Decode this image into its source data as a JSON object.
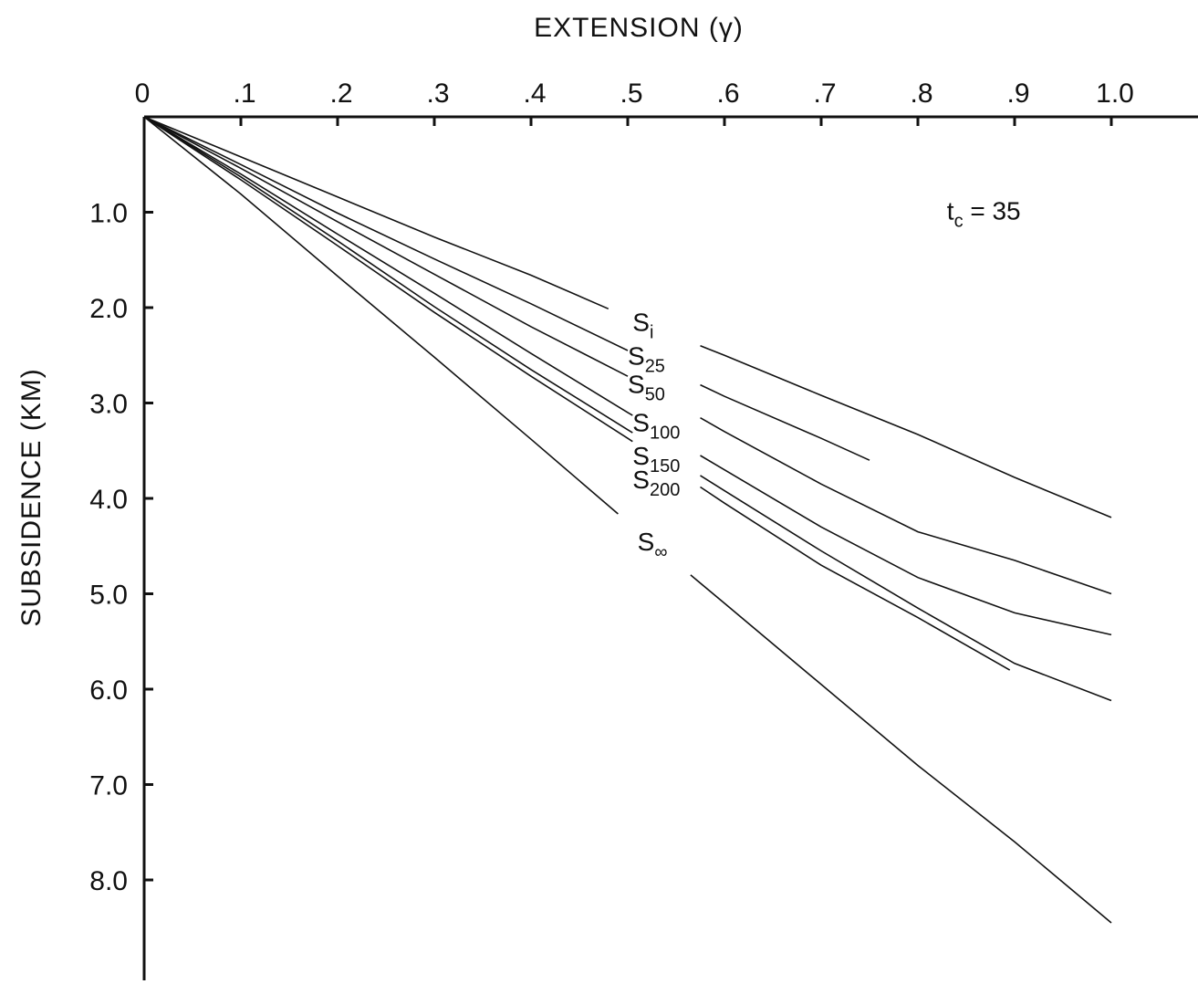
{
  "chart_data": {
    "type": "line",
    "title": "",
    "xlabel": "EXTENSION (γ)",
    "ylabel": "SUBSIDENCE (KM)",
    "xlim": [
      0,
      1.1
    ],
    "ylim": [
      0,
      9
    ],
    "y_inverted": true,
    "x_axis_position": "top",
    "x_ticks": [
      {
        "v": 0,
        "label": "0"
      },
      {
        "v": 0.1,
        "label": ".1"
      },
      {
        "v": 0.2,
        "label": ".2"
      },
      {
        "v": 0.3,
        "label": ".3"
      },
      {
        "v": 0.4,
        "label": ".4"
      },
      {
        "v": 0.5,
        "label": ".5"
      },
      {
        "v": 0.6,
        "label": ".6"
      },
      {
        "v": 0.7,
        "label": ".7"
      },
      {
        "v": 0.8,
        "label": ".8"
      },
      {
        "v": 0.9,
        "label": ".9"
      },
      {
        "v": 1.0,
        "label": "1.0"
      }
    ],
    "y_ticks": [
      {
        "v": 1,
        "label": "1.0"
      },
      {
        "v": 2,
        "label": "2.0"
      },
      {
        "v": 3,
        "label": "3.0"
      },
      {
        "v": 4,
        "label": "4.0"
      },
      {
        "v": 5,
        "label": "5.0"
      },
      {
        "v": 6,
        "label": "6.0"
      },
      {
        "v": 7,
        "label": "7.0"
      },
      {
        "v": 8,
        "label": "8.0"
      }
    ],
    "annotation": {
      "base": "t",
      "sub": "c",
      "rest": " = 35",
      "x": 0.83,
      "y": 1.0
    },
    "series": [
      {
        "name": "Si",
        "base": "S",
        "sub": "i",
        "label_at": [
          0.505,
          2.15
        ],
        "gap_x": [
          0.48,
          0.575
        ],
        "points": [
          [
            0,
            0
          ],
          [
            0.1,
            0.42
          ],
          [
            0.2,
            0.84
          ],
          [
            0.3,
            1.26
          ],
          [
            0.4,
            1.66
          ],
          [
            0.5,
            2.1
          ],
          [
            0.6,
            2.5
          ],
          [
            0.7,
            2.92
          ],
          [
            0.8,
            3.33
          ],
          [
            0.9,
            3.78
          ],
          [
            1.0,
            4.2
          ]
        ]
      },
      {
        "name": "S25",
        "base": "S",
        "sub": "25",
        "label_at": [
          0.5,
          2.5
        ],
        "gap_x": [
          0.5,
          0.575
        ],
        "points": [
          [
            0,
            0
          ],
          [
            0.1,
            0.5
          ],
          [
            0.2,
            1.01
          ],
          [
            0.3,
            1.49
          ],
          [
            0.4,
            1.96
          ],
          [
            0.5,
            2.45
          ],
          [
            0.6,
            2.93
          ],
          [
            0.7,
            3.37
          ],
          [
            0.75,
            3.6
          ]
        ]
      },
      {
        "name": "S50",
        "base": "S",
        "sub": "50",
        "label_at": [
          0.5,
          2.8
        ],
        "gap_x": [
          0.5,
          0.575
        ],
        "points": [
          [
            0,
            0
          ],
          [
            0.1,
            0.54
          ],
          [
            0.2,
            1.1
          ],
          [
            0.3,
            1.65
          ],
          [
            0.4,
            2.2
          ],
          [
            0.5,
            2.72
          ],
          [
            0.6,
            3.3
          ],
          [
            0.7,
            3.85
          ],
          [
            0.8,
            4.35
          ],
          [
            0.9,
            4.65
          ],
          [
            1.0,
            5.0
          ]
        ]
      },
      {
        "name": "S100",
        "base": "S",
        "sub": "100",
        "label_at": [
          0.505,
          3.2
        ],
        "gap_x": [
          0.505,
          0.575
        ],
        "points": [
          [
            0,
            0
          ],
          [
            0.1,
            0.6
          ],
          [
            0.2,
            1.23
          ],
          [
            0.3,
            1.85
          ],
          [
            0.4,
            2.48
          ],
          [
            0.5,
            3.1
          ],
          [
            0.6,
            3.7
          ],
          [
            0.7,
            4.3
          ],
          [
            0.8,
            4.83
          ],
          [
            0.9,
            5.2
          ],
          [
            1.0,
            5.43
          ]
        ]
      },
      {
        "name": "S150",
        "base": "S",
        "sub": "150",
        "label_at": [
          0.505,
          3.55
        ],
        "gap_x": [
          0.505,
          0.575
        ],
        "points": [
          [
            0,
            0
          ],
          [
            0.1,
            0.63
          ],
          [
            0.2,
            1.3
          ],
          [
            0.3,
            1.99
          ],
          [
            0.4,
            2.65
          ],
          [
            0.5,
            3.28
          ],
          [
            0.6,
            3.92
          ],
          [
            0.7,
            4.55
          ],
          [
            0.8,
            5.15
          ],
          [
            0.9,
            5.73
          ],
          [
            1.0,
            6.12
          ]
        ]
      },
      {
        "name": "S200",
        "base": "S",
        "sub": "200",
        "label_at": [
          0.505,
          3.8
        ],
        "gap_x": [
          0.505,
          0.575
        ],
        "points": [
          [
            0,
            0
          ],
          [
            0.1,
            0.66
          ],
          [
            0.2,
            1.35
          ],
          [
            0.3,
            2.05
          ],
          [
            0.4,
            2.72
          ],
          [
            0.5,
            3.37
          ],
          [
            0.6,
            4.05
          ],
          [
            0.7,
            4.7
          ],
          [
            0.8,
            5.25
          ],
          [
            0.895,
            5.8
          ]
        ]
      },
      {
        "name": "S∞",
        "base": "S",
        "sub": "∞",
        "label_at": [
          0.51,
          4.45
        ],
        "gap_x": [
          0.49,
          0.565
        ],
        "points": [
          [
            0,
            0
          ],
          [
            0.1,
            0.81
          ],
          [
            0.2,
            1.67
          ],
          [
            0.3,
            2.52
          ],
          [
            0.4,
            3.38
          ],
          [
            0.5,
            4.25
          ],
          [
            0.6,
            5.1
          ],
          [
            0.7,
            5.95
          ],
          [
            0.8,
            6.8
          ],
          [
            0.9,
            7.6
          ],
          [
            1.0,
            8.45
          ]
        ]
      }
    ]
  }
}
